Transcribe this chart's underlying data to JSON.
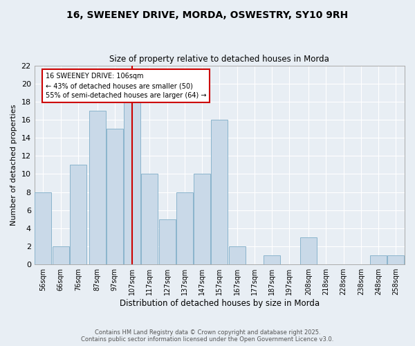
{
  "title": "16, SWEENEY DRIVE, MORDA, OSWESTRY, SY10 9RH",
  "subtitle": "Size of property relative to detached houses in Morda",
  "xlabel": "Distribution of detached houses by size in Morda",
  "ylabel": "Number of detached properties",
  "bin_labels": [
    "56sqm",
    "66sqm",
    "76sqm",
    "87sqm",
    "97sqm",
    "107sqm",
    "117sqm",
    "127sqm",
    "137sqm",
    "147sqm",
    "157sqm",
    "167sqm",
    "177sqm",
    "187sqm",
    "197sqm",
    "208sqm",
    "218sqm",
    "228sqm",
    "238sqm",
    "248sqm",
    "258sqm"
  ],
  "bar_centers": [
    56,
    66,
    76,
    87,
    97,
    107,
    117,
    127,
    137,
    147,
    157,
    167,
    177,
    187,
    197,
    208,
    218,
    228,
    238,
    248,
    258
  ],
  "bar_heights": [
    8,
    2,
    11,
    17,
    15,
    18,
    10,
    5,
    8,
    10,
    16,
    2,
    0,
    1,
    0,
    3,
    0,
    0,
    0,
    1,
    1
  ],
  "bar_color": "#c9d9e8",
  "bar_edge_color": "#8ab4cc",
  "red_line_x": 107,
  "annotation_title": "16 SWEENEY DRIVE: 106sqm",
  "annotation_line1": "← 43% of detached houses are smaller (50)",
  "annotation_line2": "55% of semi-detached houses are larger (64) →",
  "annotation_box_color": "#ffffff",
  "annotation_box_edge": "#cc0000",
  "red_line_color": "#cc0000",
  "ylim": [
    0,
    22
  ],
  "yticks": [
    0,
    2,
    4,
    6,
    8,
    10,
    12,
    14,
    16,
    18,
    20,
    22
  ],
  "footer_line1": "Contains HM Land Registry data © Crown copyright and database right 2025.",
  "footer_line2": "Contains public sector information licensed under the Open Government Licence v3.0.",
  "bg_color": "#e8eef4",
  "plot_bg_color": "#e8eef4"
}
